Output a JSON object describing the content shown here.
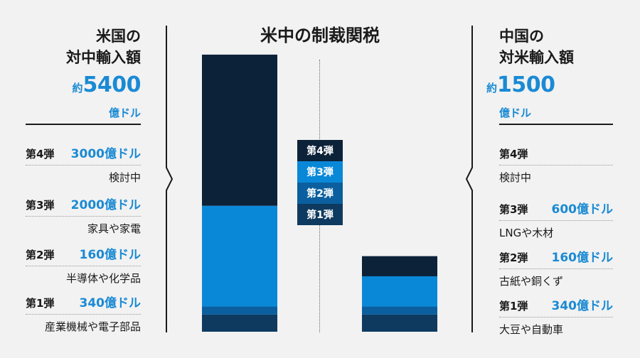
{
  "title": "米中の制裁関税",
  "colors": {
    "tranche4": "#0c2239",
    "tranche3": "#0a88d8",
    "tranche2": "#0b5f9e",
    "tranche1": "#0e3a60",
    "accent": "#1a8ad4"
  },
  "legend": [
    "第4弾",
    "第3弾",
    "第2弾",
    "第1弾"
  ],
  "us": {
    "title_line1": "米国の",
    "title_line2": "対中輸入額",
    "approx": "約",
    "total": "5400",
    "unit": "億ドル",
    "rows": [
      {
        "label": "第4弾",
        "amount": "3000億ドル",
        "desc": "検討中"
      },
      {
        "label": "第3弾",
        "amount": "2000億ドル",
        "desc": "家具や家電"
      },
      {
        "label": "第2弾",
        "amount": "160億ドル",
        "desc": "半導体や化学品"
      },
      {
        "label": "第1弾",
        "amount": "340億ドル",
        "desc": "産業機械や電子部品"
      }
    ]
  },
  "china": {
    "title_line1": "中国の",
    "title_line2": "対米輸入額",
    "approx": "約",
    "total": "1500",
    "unit": "億ドル",
    "rows": [
      {
        "label": "第4弾",
        "amount": "",
        "desc": "検討中"
      },
      {
        "label": "第3弾",
        "amount": "600億ドル",
        "desc": "LNGや木材"
      },
      {
        "label": "第2弾",
        "amount": "160億ドル",
        "desc": "古紙や銅くず"
      },
      {
        "label": "第1弾",
        "amount": "340億ドル",
        "desc": "大豆や自動車"
      }
    ]
  },
  "chart_data": {
    "type": "bar",
    "stacked": true,
    "categories": [
      "米国の対中輸入額",
      "中国の対米輸入額"
    ],
    "series": [
      {
        "name": "第1弾",
        "values": [
          340,
          340
        ]
      },
      {
        "name": "第2弾",
        "values": [
          160,
          160
        ]
      },
      {
        "name": "第3弾",
        "values": [
          2000,
          600
        ]
      },
      {
        "name": "第4弾",
        "values": [
          3000,
          400
        ]
      }
    ],
    "ylim": [
      0,
      5400
    ]
  }
}
